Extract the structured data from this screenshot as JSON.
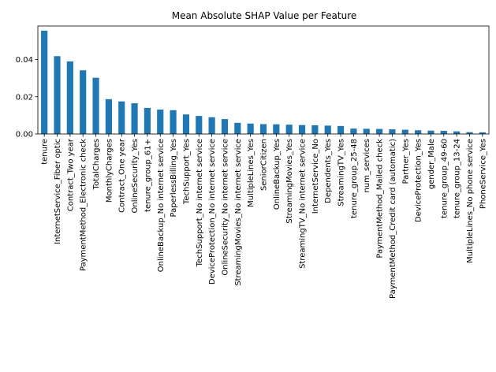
{
  "chart_data": {
    "type": "bar",
    "title": "Mean Absolute SHAP Value per Feature",
    "xlabel": "",
    "ylabel": "",
    "ylim": [
      0,
      0.058
    ],
    "yticks": [
      "0.00",
      "0.02",
      "0.04"
    ],
    "ytick_values": [
      0.0,
      0.02,
      0.04
    ],
    "grid": false,
    "legend": "none",
    "bar_color": "#1f77b4",
    "categories": [
      "tenure",
      "InternetService_Fiber optic",
      "Contract_Two year",
      "PaymentMethod_Electronic check",
      "TotalCharges",
      "MonthlyCharges",
      "Contract_One year",
      "OnlineSecurity_Yes",
      "tenure_group_61+",
      "OnlineBackup_No internet service",
      "PaperlessBilling_Yes",
      "TechSupport_Yes",
      "TechSupport_No internet service",
      "DeviceProtection_No internet service",
      "OnlineSecurity_No internet service",
      "StreamingMovies_No internet service",
      "MultipleLines_Yes",
      "SeniorCitizen",
      "OnlineBackup_Yes",
      "StreamingMovies_Yes",
      "StreamingTV_No internet service",
      "InternetService_No",
      "Dependents_Yes",
      "StreamingTV_Yes",
      "tenure_group_25-48",
      "num_services",
      "PaymentMethod_Mailed check",
      "PaymentMethod_Credit card (automatic)",
      "Partner_Yes",
      "DeviceProtection_Yes",
      "gender_Male",
      "tenure_group_49-60",
      "tenure_group_13-24",
      "MultipleLines_No phone service",
      "PhoneService_Yes"
    ],
    "values": [
      0.0555,
      0.0418,
      0.039,
      0.0342,
      0.0302,
      0.0187,
      0.0175,
      0.0165,
      0.014,
      0.0131,
      0.0128,
      0.0105,
      0.0097,
      0.009,
      0.008,
      0.006,
      0.0056,
      0.0053,
      0.0052,
      0.005,
      0.0048,
      0.0047,
      0.0045,
      0.0043,
      0.0029,
      0.0028,
      0.0027,
      0.0025,
      0.0023,
      0.002,
      0.0018,
      0.0017,
      0.0014,
      0.001,
      0.0009
    ]
  }
}
